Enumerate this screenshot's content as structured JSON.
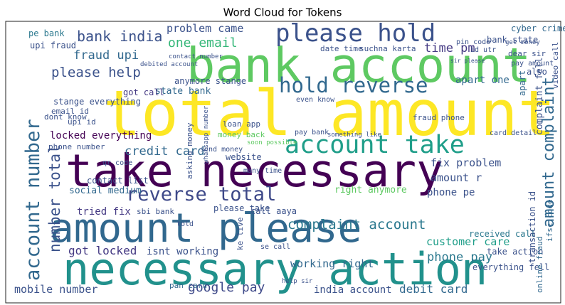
{
  "chart_data": {
    "type": "wordcloud",
    "title": "Word Cloud for Tokens",
    "words": [
      {
        "text": "total amount",
        "weight": 88,
        "color": "#fde725"
      },
      {
        "text": "bank account",
        "weight": 67,
        "color": "#5ec962"
      },
      {
        "text": "take necessary",
        "weight": 63,
        "color": "#440154"
      },
      {
        "text": "amount please",
        "weight": 56,
        "color": "#31688e"
      },
      {
        "text": "necessary action",
        "weight": 62,
        "color": "#21918c"
      },
      {
        "text": "please hold",
        "weight": 34,
        "color": "#3b528b"
      },
      {
        "text": "hold reverse",
        "weight": 29,
        "color": "#31688e"
      },
      {
        "text": "account take",
        "weight": 35,
        "color": "#1f9e89"
      },
      {
        "text": "reverse total",
        "weight": 27,
        "color": "#3e4989"
      },
      {
        "text": "complaint account",
        "weight": 19,
        "color": "#2a788e"
      },
      {
        "text": "account number",
        "weight": 27,
        "color": "#31688e"
      },
      {
        "text": "please help",
        "weight": 19,
        "color": "#3b528b"
      },
      {
        "text": "bank india",
        "weight": 20,
        "color": "#3b528b"
      },
      {
        "text": "fraud upi",
        "weight": 17,
        "color": "#31688e"
      },
      {
        "text": "one email",
        "weight": 18,
        "color": "#35b779"
      },
      {
        "text": "problem came",
        "weight": 15,
        "color": "#3b528b"
      },
      {
        "text": "time pm",
        "weight": 17,
        "color": "#443983"
      },
      {
        "text": "credit card",
        "weight": 17,
        "color": "#31688e"
      },
      {
        "text": "customer care",
        "weight": 15,
        "color": "#1f9e89"
      },
      {
        "text": "phone pay",
        "weight": 17,
        "color": "#2a788e"
      },
      {
        "text": "google pay",
        "weight": 18,
        "color": "#3e4989"
      },
      {
        "text": "india account",
        "weight": 14,
        "color": "#3b528b"
      },
      {
        "text": "debit card",
        "weight": 16,
        "color": "#31688e"
      },
      {
        "text": "mobile number",
        "weight": 15,
        "color": "#3b528b"
      },
      {
        "text": "working right",
        "weight": 15,
        "color": "#31688e"
      },
      {
        "text": "got locked",
        "weight": 16,
        "color": "#443983"
      },
      {
        "text": "isnt working",
        "weight": 14,
        "color": "#3b528b"
      },
      {
        "text": "tried fix",
        "weight": 14,
        "color": "#443983"
      },
      {
        "text": "fix problem",
        "weight": 15,
        "color": "#3b528b"
      },
      {
        "text": "amount r",
        "weight": 15,
        "color": "#3b528b"
      },
      {
        "text": "phone pe",
        "weight": 14,
        "color": "#3b528b"
      },
      {
        "text": "right anymore",
        "weight": 13,
        "color": "#5ec962"
      },
      {
        "text": "apart one",
        "weight": 14,
        "color": "#31688e"
      },
      {
        "text": "upi fraud",
        "weight": 12,
        "color": "#3b528b"
      },
      {
        "text": "pe bank",
        "weight": 12,
        "color": "#2a788e"
      },
      {
        "text": "state bank",
        "weight": 13,
        "color": "#31688e"
      },
      {
        "text": "got call",
        "weight": 12,
        "color": "#443983"
      },
      {
        "text": "stange everything",
        "weight": 12,
        "color": "#3b528b"
      },
      {
        "text": "anymore stange",
        "weight": 12,
        "color": "#3b528b"
      },
      {
        "text": "email id",
        "weight": 11,
        "color": "#3b528b"
      },
      {
        "text": "upi id",
        "weight": 11,
        "color": "#3b528b"
      },
      {
        "text": "dont know",
        "weight": 11,
        "color": "#3b528b"
      },
      {
        "text": "locked everything",
        "weight": 14,
        "color": "#440154"
      },
      {
        "text": "phone number",
        "weight": 11,
        "color": "#3b528b"
      },
      {
        "text": "contact list",
        "weight": 12,
        "color": "#3b528b"
      },
      {
        "text": "social medium",
        "weight": 13,
        "color": "#31688e"
      },
      {
        "text": "sbi bank",
        "weight": 11,
        "color": "#3b528b"
      },
      {
        "text": "please take",
        "weight": 12,
        "color": "#3b528b"
      },
      {
        "text": "call aaya",
        "weight": 12,
        "color": "#3b528b"
      },
      {
        "text": "received call",
        "weight": 12,
        "color": "#2a788e"
      },
      {
        "text": "take action",
        "weight": 12,
        "color": "#3b528b"
      },
      {
        "text": "everything fell",
        "weight": 12,
        "color": "#3b528b"
      },
      {
        "text": "pan card",
        "weight": 11,
        "color": "#31688e"
      },
      {
        "text": "fraud phone",
        "weight": 11,
        "color": "#3b528b"
      },
      {
        "text": "bank state",
        "weight": 12,
        "color": "#3b528b"
      },
      {
        "text": "cyber crime",
        "weight": 12,
        "color": "#31688e"
      },
      {
        "text": "date time",
        "weight": 11,
        "color": "#3b528b"
      },
      {
        "text": "suchna karta",
        "weight": 11,
        "color": "#3b528b"
      },
      {
        "text": "contact number",
        "weight": 9,
        "color": "#3b528b"
      },
      {
        "text": "debited account",
        "weight": 9,
        "color": "#3b528b"
      },
      {
        "text": "money back",
        "weight": 11,
        "color": "#5ec962"
      },
      {
        "text": "loan app",
        "weight": 11,
        "color": "#3b528b"
      },
      {
        "text": "website",
        "weight": 12,
        "color": "#3b528b"
      },
      {
        "text": "many time",
        "weight": 10,
        "color": "#3b528b"
      },
      {
        "text": "pay bank",
        "weight": 10,
        "color": "#3b528b"
      },
      {
        "text": "something like",
        "weight": 9,
        "color": "#3b528b"
      },
      {
        "text": "card detail",
        "weight": 10,
        "color": "#3b528b"
      },
      {
        "text": "also",
        "weight": 12,
        "color": "#3b528b"
      },
      {
        "text": "soon possible",
        "weight": 9,
        "color": "#5ec962"
      },
      {
        "text": "even know",
        "weight": 10,
        "color": "#3b528b"
      },
      {
        "text": "dear sir",
        "weight": 11,
        "color": "#3b528b"
      },
      {
        "text": "get money",
        "weight": 9,
        "color": "#3b528b"
      },
      {
        "text": "pay amount",
        "weight": 10,
        "color": "#3b528b"
      },
      {
        "text": "pin code",
        "weight": 10,
        "color": "#3b528b"
      },
      {
        "text": "id utr",
        "weight": 10,
        "color": "#3b528b"
      },
      {
        "text": "sir please",
        "weight": 8,
        "color": "#3b528b"
      },
      {
        "text": "send money",
        "weight": 10,
        "color": "#3b528b"
      },
      {
        "text": "qr code",
        "weight": 10,
        "color": "#3b528b"
      },
      {
        "text": "told",
        "weight": 10,
        "color": "#3b528b"
      },
      {
        "text": "se call",
        "weight": 10,
        "color": "#3b528b"
      },
      {
        "text": "help sir",
        "weight": 9,
        "color": "#3b528b"
      },
      {
        "text": "number total",
        "weight": 21,
        "color": "#3b528b"
      },
      {
        "text": "amount complaint",
        "weight": 22,
        "color": "#31688e"
      },
      {
        "text": "complaint fell",
        "weight": 13,
        "color": "#3b528b"
      },
      {
        "text": "transaction id",
        "weight": 12,
        "color": "#3b528b"
      },
      {
        "text": "online fraud",
        "weight": 11,
        "color": "#31688e"
      },
      {
        "text": "ifsc code",
        "weight": 11,
        "color": "#31688e"
      },
      {
        "text": "video call",
        "weight": 11,
        "color": "#3b528b"
      },
      {
        "text": "asking money",
        "weight": 11,
        "color": "#3b528b"
      },
      {
        "text": "whatsapp number",
        "weight": 9,
        "color": "#3b528b"
      },
      {
        "text": "apart",
        "weight": 12,
        "color": "#31688e"
      },
      {
        "text": "ke live",
        "weight": 11,
        "color": "#3b528b"
      }
    ]
  }
}
